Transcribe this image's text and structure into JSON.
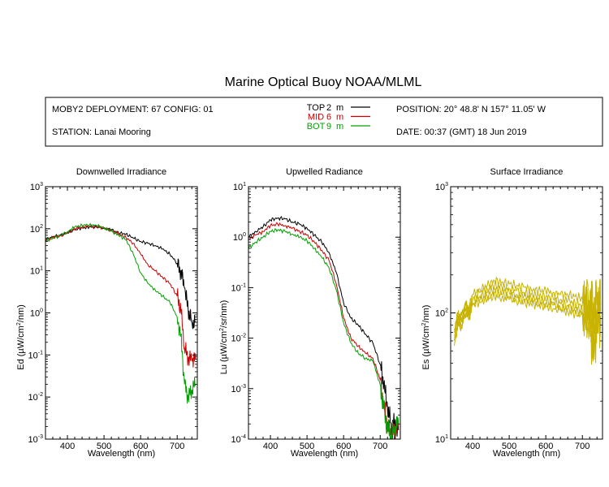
{
  "title": "Marine Optical Buoy NOAA/MLML",
  "info": {
    "deployment": "MOBY2 DEPLOYMENT: 67 CONFIG: 01",
    "station": "STATION: Lanai Mooring",
    "position": "POSITION: 20° 48.8' N   157° 11.05' W",
    "date": "DATE: 00:37 (GMT) 18 Jun 2019",
    "legend": [
      {
        "name": "TOP",
        "depth": "2",
        "unit": "m",
        "color": "#000000"
      },
      {
        "name": "MID",
        "depth": "6",
        "unit": "m",
        "color": "#cc0000"
      },
      {
        "name": "BOT",
        "depth": "9",
        "unit": "m",
        "color": "#00a000"
      }
    ]
  },
  "colors": {
    "top": "#000000",
    "mid": "#cc0000",
    "bot": "#00a000",
    "surface": "#c8b400"
  },
  "chart_data": [
    {
      "type": "line",
      "title": "Downwelled Irradiance",
      "xlabel": "Wavelength (nm)",
      "ylabel": "Ed  (µW/cm²/nm)",
      "xlim": [
        340,
        755
      ],
      "ylim": [
        0.001,
        1000
      ],
      "yscale": "log",
      "xticks": [
        "400",
        "500",
        "600",
        "700"
      ],
      "yticks": [
        "10-3",
        "10-2",
        "10-1",
        "100",
        "101",
        "102",
        "103"
      ],
      "x": [
        340,
        360,
        380,
        400,
        420,
        440,
        460,
        480,
        500,
        520,
        540,
        560,
        580,
        600,
        620,
        640,
        660,
        680,
        700,
        710,
        720,
        730,
        740,
        750
      ],
      "series": [
        {
          "name": "TOP",
          "values": [
            55,
            65,
            70,
            80,
            95,
            105,
            110,
            110,
            105,
            95,
            80,
            75,
            60,
            50,
            45,
            40,
            33,
            25,
            15,
            10,
            4,
            1.2,
            0.6,
            0.6
          ]
        },
        {
          "name": "MID",
          "values": [
            52,
            62,
            68,
            80,
            100,
            110,
            115,
            112,
            105,
            90,
            75,
            62,
            45,
            25,
            14,
            10,
            7,
            5,
            2.5,
            1.2,
            0.15,
            0.08,
            0.08,
            0.08
          ]
        },
        {
          "name": "BOT",
          "values": [
            50,
            60,
            68,
            85,
            110,
            120,
            125,
            118,
            105,
            88,
            70,
            55,
            25,
            9,
            5,
            3.5,
            2.5,
            1.8,
            0.8,
            0.3,
            0.02,
            0.01,
            0.015,
            0.02
          ]
        }
      ]
    },
    {
      "type": "line",
      "title": "Upwelled Radiance",
      "xlabel": "Wavelength (nm)",
      "ylabel": "Lu  (µW/cm²/sr/nm)",
      "xlim": [
        340,
        755
      ],
      "ylim": [
        0.0001,
        10
      ],
      "yscale": "log",
      "xticks": [
        "400",
        "500",
        "600",
        "700"
      ],
      "yticks": [
        "10-4",
        "10-3",
        "10-2",
        "10-1",
        "100",
        "101"
      ],
      "x": [
        340,
        360,
        380,
        400,
        420,
        440,
        460,
        480,
        500,
        520,
        540,
        560,
        580,
        600,
        620,
        640,
        660,
        680,
        700,
        710,
        720,
        730,
        740,
        750
      ],
      "series": [
        {
          "name": "TOP",
          "values": [
            1.0,
            1.3,
            1.6,
            2.2,
            2.4,
            2.3,
            2.0,
            1.8,
            1.5,
            1.1,
            0.8,
            0.5,
            0.2,
            0.05,
            0.025,
            0.018,
            0.012,
            0.008,
            0.003,
            0.0012,
            0.0004,
            0.0002,
            0.0002,
            0.00015
          ]
        },
        {
          "name": "MID",
          "values": [
            0.9,
            1.1,
            1.3,
            1.7,
            1.8,
            1.7,
            1.5,
            1.3,
            1.1,
            0.8,
            0.55,
            0.35,
            0.12,
            0.025,
            0.01,
            0.007,
            0.005,
            0.004,
            0.0015,
            0.0005,
            0.0002,
            0.00012,
            0.00015,
            0.0002
          ]
        },
        {
          "name": "BOT",
          "values": [
            0.6,
            0.8,
            1.0,
            1.3,
            1.4,
            1.3,
            1.15,
            1.0,
            0.85,
            0.6,
            0.4,
            0.25,
            0.09,
            0.02,
            0.008,
            0.005,
            0.004,
            0.0035,
            0.0012,
            0.0004,
            0.00015,
            0.00012,
            0.00015,
            0.0002
          ]
        }
      ]
    },
    {
      "type": "line",
      "title": "Surface Irradiance",
      "xlabel": "Wavelength (nm)",
      "ylabel": "Es  (µW/cm²/nm)",
      "xlim": [
        340,
        755
      ],
      "ylim": [
        10,
        1000
      ],
      "yscale": "log",
      "xticks": [
        "400",
        "500",
        "600",
        "700"
      ],
      "yticks": [
        "101",
        "102",
        "103"
      ],
      "x": [
        350,
        360,
        370,
        380,
        390,
        400,
        420,
        440,
        460,
        480,
        500,
        520,
        540,
        560,
        580,
        600,
        620,
        640,
        660,
        680,
        700,
        720,
        730,
        740,
        750
      ],
      "series": [
        {
          "values": [
            75,
            100,
            95,
            120,
            110,
            140,
            155,
            165,
            180,
            175,
            170,
            165,
            160,
            155,
            150,
            150,
            145,
            140,
            140,
            135,
            130,
            125,
            120,
            115,
            115
          ]
        },
        {
          "values": [
            70,
            95,
            90,
            115,
            105,
            130,
            145,
            155,
            165,
            160,
            155,
            150,
            145,
            140,
            138,
            135,
            130,
            128,
            125,
            120,
            115,
            110,
            100,
            105,
            110
          ]
        },
        {
          "values": [
            65,
            90,
            85,
            110,
            100,
            125,
            135,
            145,
            155,
            150,
            145,
            140,
            135,
            132,
            128,
            125,
            122,
            118,
            115,
            110,
            105,
            100,
            85,
            98,
            100
          ]
        },
        {
          "values": [
            60,
            85,
            80,
            105,
            95,
            120,
            128,
            135,
            145,
            140,
            135,
            132,
            128,
            125,
            120,
            118,
            115,
            110,
            108,
            104,
            100,
            95,
            60,
            92,
            95
          ]
        },
        {
          "values": [
            55,
            80,
            75,
            100,
            90,
            115,
            122,
            128,
            135,
            132,
            128,
            125,
            120,
            118,
            115,
            112,
            108,
            105,
            102,
            98,
            95,
            90,
            45,
            88,
            90
          ]
        }
      ]
    }
  ]
}
